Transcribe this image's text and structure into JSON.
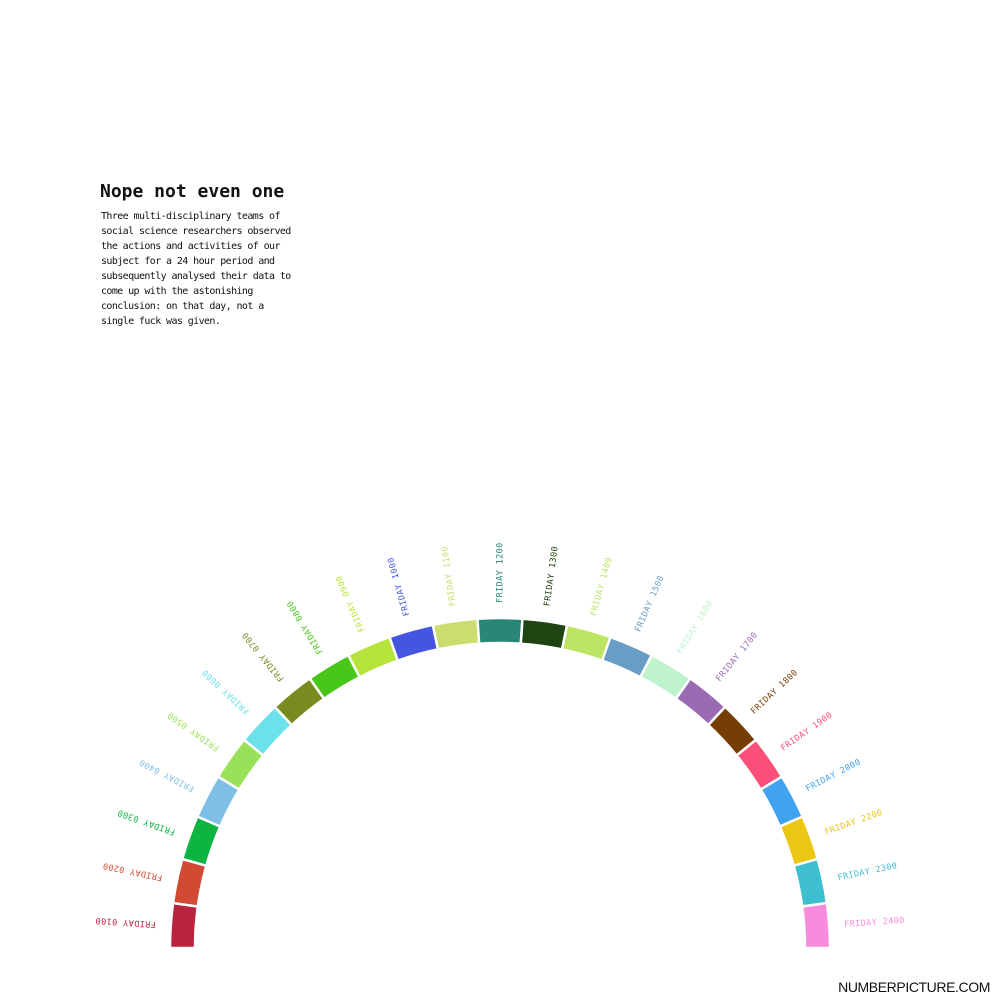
{
  "title": "Nope not even one",
  "description": "Three multi-disciplinary teams of social science researchers observed the actions and activities of our subject for a 24 hour period and subsequently analysed their data to come up with the astonishing conclusion: on that day, not a single fuck was given.",
  "credit": "NUMBERPICTURE.COM",
  "chart_data": {
    "type": "radial-bar",
    "title": "Nope not even one",
    "categories": [
      "FRIDAY 0100",
      "FRIDAY 0200",
      "FRIDAY 0300",
      "FRIDAY 0400",
      "FRIDAY 0500",
      "FRIDAY 0600",
      "FRIDAY 0700",
      "FRIDAY 0800",
      "FRIDAY 0900",
      "FRIDAY 1000",
      "FRIDAY 1100",
      "FRIDAY 1200",
      "FRIDAY 1300",
      "FRIDAY 1400",
      "FRIDAY 1500",
      "FRIDAY 1600",
      "FRIDAY 1700",
      "FRIDAY 1800",
      "FRIDAY 1900",
      "FRIDAY 2000",
      "FRIDAY 2200",
      "FRIDAY 2300",
      "FRIDAY 2400"
    ],
    "values": [
      0,
      0,
      0,
      0,
      0,
      0,
      0,
      0,
      0,
      0,
      0,
      0,
      0,
      0,
      0,
      0,
      0,
      0,
      0,
      0,
      0,
      0,
      0
    ],
    "colors": [
      "#b8233e",
      "#d24a33",
      "#0db442",
      "#7ebfe6",
      "#98e158",
      "#6be2e9",
      "#798a1e",
      "#49c718",
      "#b7e43a",
      "#4456e0",
      "#cbdd6e",
      "#2a8676",
      "#1f4311",
      "#bce563",
      "#689ec6",
      "#bff3cd",
      "#9a6bb3",
      "#763d04",
      "#f94f79",
      "#41a2ef",
      "#ebc613",
      "#3ebfd0",
      "#f78bdd"
    ]
  }
}
